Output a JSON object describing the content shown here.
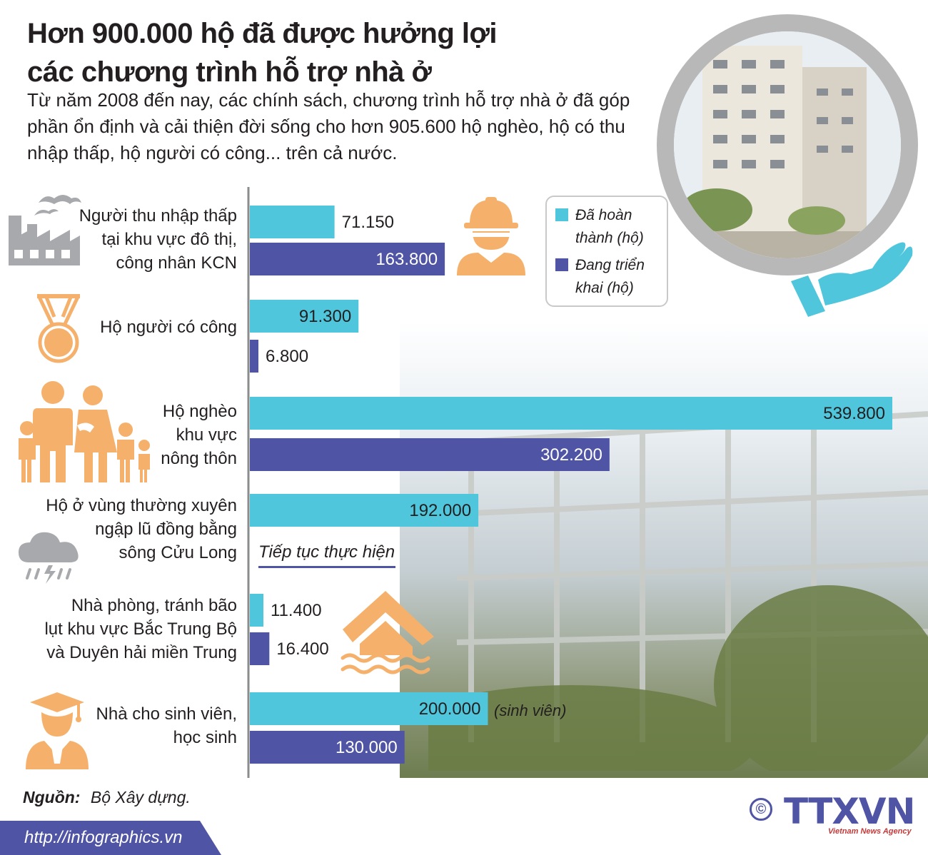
{
  "title_lines": [
    "Hơn 900.000 hộ đã được hưởng lợi",
    "các chương trình hỗ trợ nhà ở"
  ],
  "subtitle": "Từ năm 2008 đến nay, các chính sách, chương trình hỗ trợ nhà ở đã góp phần ổn định và cải thiện đời sống cho hơn 905.600 hộ nghèo, hộ có thu nhập thấp, hộ người có công... trên cả nước.",
  "colors": {
    "completed": "#4fc6dc",
    "ongoing": "#4f54a4",
    "icon": "#f5b16b",
    "icon_gray": "#a7a9ac",
    "hand": "#4fc6dc"
  },
  "legend": [
    {
      "label": "Đã hoàn thành (hộ)",
      "color": "#4fc6dc"
    },
    {
      "label": "Đang triển khai (hộ)",
      "color": "#4f54a4"
    }
  ],
  "chart_data": {
    "type": "bar",
    "orientation": "horizontal",
    "categories": [
      "Người thu nhập thấp\ntại khu vực đô thị,\ncông nhân KCN",
      "Hộ người có công",
      "Hộ nghèo\nkhu vực\nnông thôn",
      "Hộ ở vùng thường xuyên\nngập lũ đồng bằng\nsông Cửu Long",
      "Nhà phòng, tránh bão\nlụt khu vực Bắc Trung Bộ\nvà Duyên hải miền Trung",
      "Nhà cho sinh viên,\nhọc sinh"
    ],
    "series": [
      {
        "name": "Đã hoàn thành (hộ)",
        "values": [
          71150,
          91300,
          539800,
          192000,
          11400,
          200000
        ],
        "labels": [
          "71.150",
          "91.300",
          "539.800",
          "192.000",
          "11.400",
          "200.000"
        ]
      },
      {
        "name": "Đang triển khai (hộ)",
        "values": [
          163800,
          6800,
          302200,
          null,
          16400,
          130000
        ],
        "labels": [
          "163.800",
          "6.800",
          "302.200",
          "",
          "16.400",
          "130.000"
        ]
      }
    ],
    "xlim": [
      0,
      539800
    ],
    "annotations": [
      "Tiếp tục thực hiện",
      "(sinh viên)"
    ]
  },
  "note_continue": "Tiếp tục thực hiện",
  "note_students": "(sinh viên)",
  "source_label": "Nguồn:",
  "source_value": "Bộ Xây dựng.",
  "footer_url": "http://infographics.vn",
  "logo": {
    "symbol": "©",
    "name": "TTXVN",
    "tagline": "Vietnam News Agency"
  },
  "icons": [
    "factory-icon",
    "worker-icon",
    "medal-icon",
    "family-icon",
    "storm-cloud-icon",
    "flooded-house-icon",
    "graduate-icon",
    "hand-icon"
  ]
}
